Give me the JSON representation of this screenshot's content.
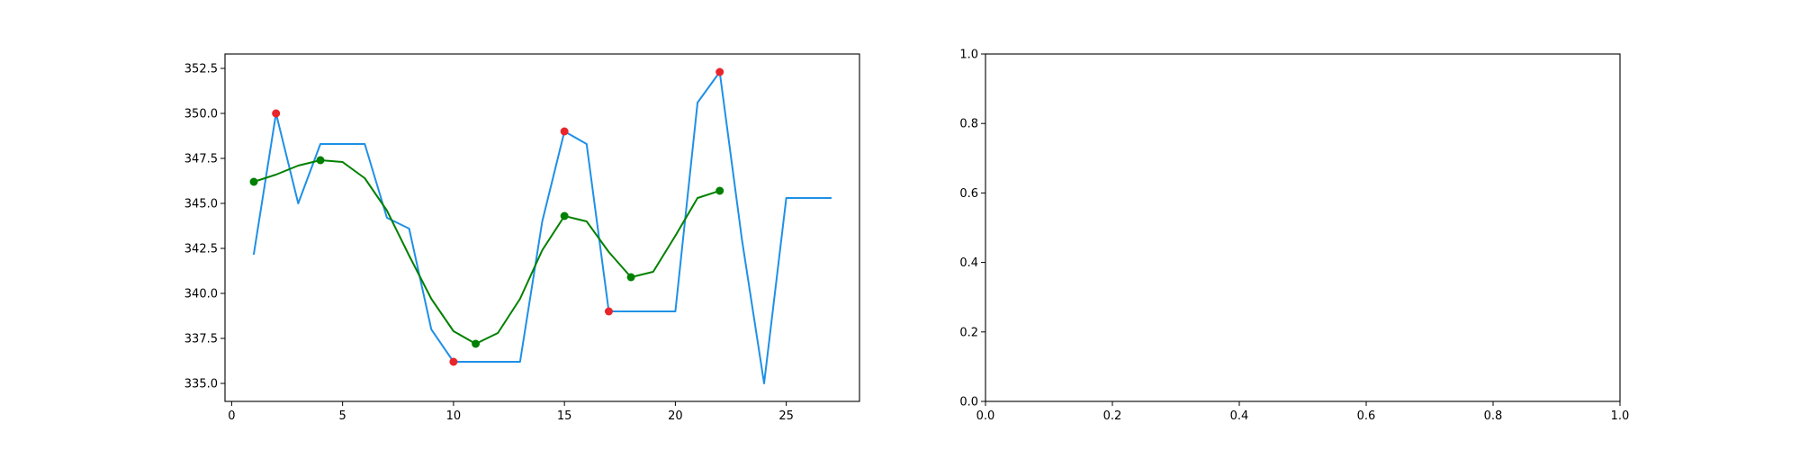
{
  "chart_data": [
    {
      "type": "line",
      "xlim": [
        -0.3,
        28.3
      ],
      "ylim": [
        334.0,
        353.3
      ],
      "xticks": [
        0,
        5,
        10,
        15,
        20,
        25
      ],
      "yticks": [
        335.0,
        337.5,
        340.0,
        342.5,
        345.0,
        347.5,
        350.0,
        352.5
      ],
      "xtick_labels": [
        "0",
        "5",
        "10",
        "15",
        "20",
        "25"
      ],
      "ytick_labels": [
        "335.0",
        "337.5",
        "340.0",
        "342.5",
        "345.0",
        "347.5",
        "350.0",
        "352.5"
      ],
      "series": [
        {
          "kind": "line",
          "color": "#1e90e6",
          "x": [
            1,
            2,
            3,
            4,
            5,
            6,
            7,
            8,
            9,
            10,
            11,
            12,
            13,
            14,
            15,
            16,
            17,
            18,
            19,
            20,
            21,
            22,
            23,
            24,
            25,
            26,
            27
          ],
          "y": [
            342.2,
            350.0,
            345.0,
            348.3,
            348.3,
            348.3,
            344.2,
            343.6,
            338.0,
            336.2,
            336.2,
            336.2,
            336.2,
            344.0,
            349.0,
            348.3,
            339.0,
            339.0,
            339.0,
            339.0,
            350.6,
            352.3,
            343.0,
            335.0,
            345.3,
            345.3,
            345.3
          ]
        },
        {
          "kind": "line",
          "color": "#008000",
          "x": [
            1,
            2,
            3,
            4,
            5,
            6,
            7,
            8,
            9,
            10,
            11,
            12,
            13,
            14,
            15,
            16,
            17,
            18,
            19,
            20,
            21,
            22
          ],
          "y": [
            346.2,
            346.6,
            347.1,
            347.4,
            347.3,
            346.4,
            344.6,
            342.1,
            339.7,
            337.9,
            337.2,
            337.8,
            339.7,
            342.4,
            344.3,
            344.0,
            342.3,
            340.9,
            341.2,
            343.2,
            345.3,
            345.7
          ]
        },
        {
          "kind": "scatter",
          "color": "#e8252b",
          "x": [
            2,
            10,
            15,
            17,
            22
          ],
          "y": [
            350.0,
            336.2,
            349.0,
            339.0,
            352.3
          ]
        },
        {
          "kind": "scatter",
          "color": "#008000",
          "x": [
            1,
            4,
            11,
            15,
            18,
            22
          ],
          "y": [
            346.2,
            347.4,
            337.2,
            344.3,
            340.9,
            345.7
          ]
        }
      ]
    },
    {
      "type": "line",
      "xlim": [
        0.0,
        1.0
      ],
      "ylim": [
        0.0,
        1.0
      ],
      "xticks": [
        0.0,
        0.2,
        0.4,
        0.6,
        0.8,
        1.0
      ],
      "yticks": [
        0.0,
        0.2,
        0.4,
        0.6,
        0.8,
        1.0
      ],
      "xtick_labels": [
        "0.0",
        "0.2",
        "0.4",
        "0.6",
        "0.8",
        "1.0"
      ],
      "ytick_labels": [
        "0.0",
        "0.2",
        "0.4",
        "0.6",
        "0.8",
        "1.0"
      ],
      "series": []
    }
  ]
}
